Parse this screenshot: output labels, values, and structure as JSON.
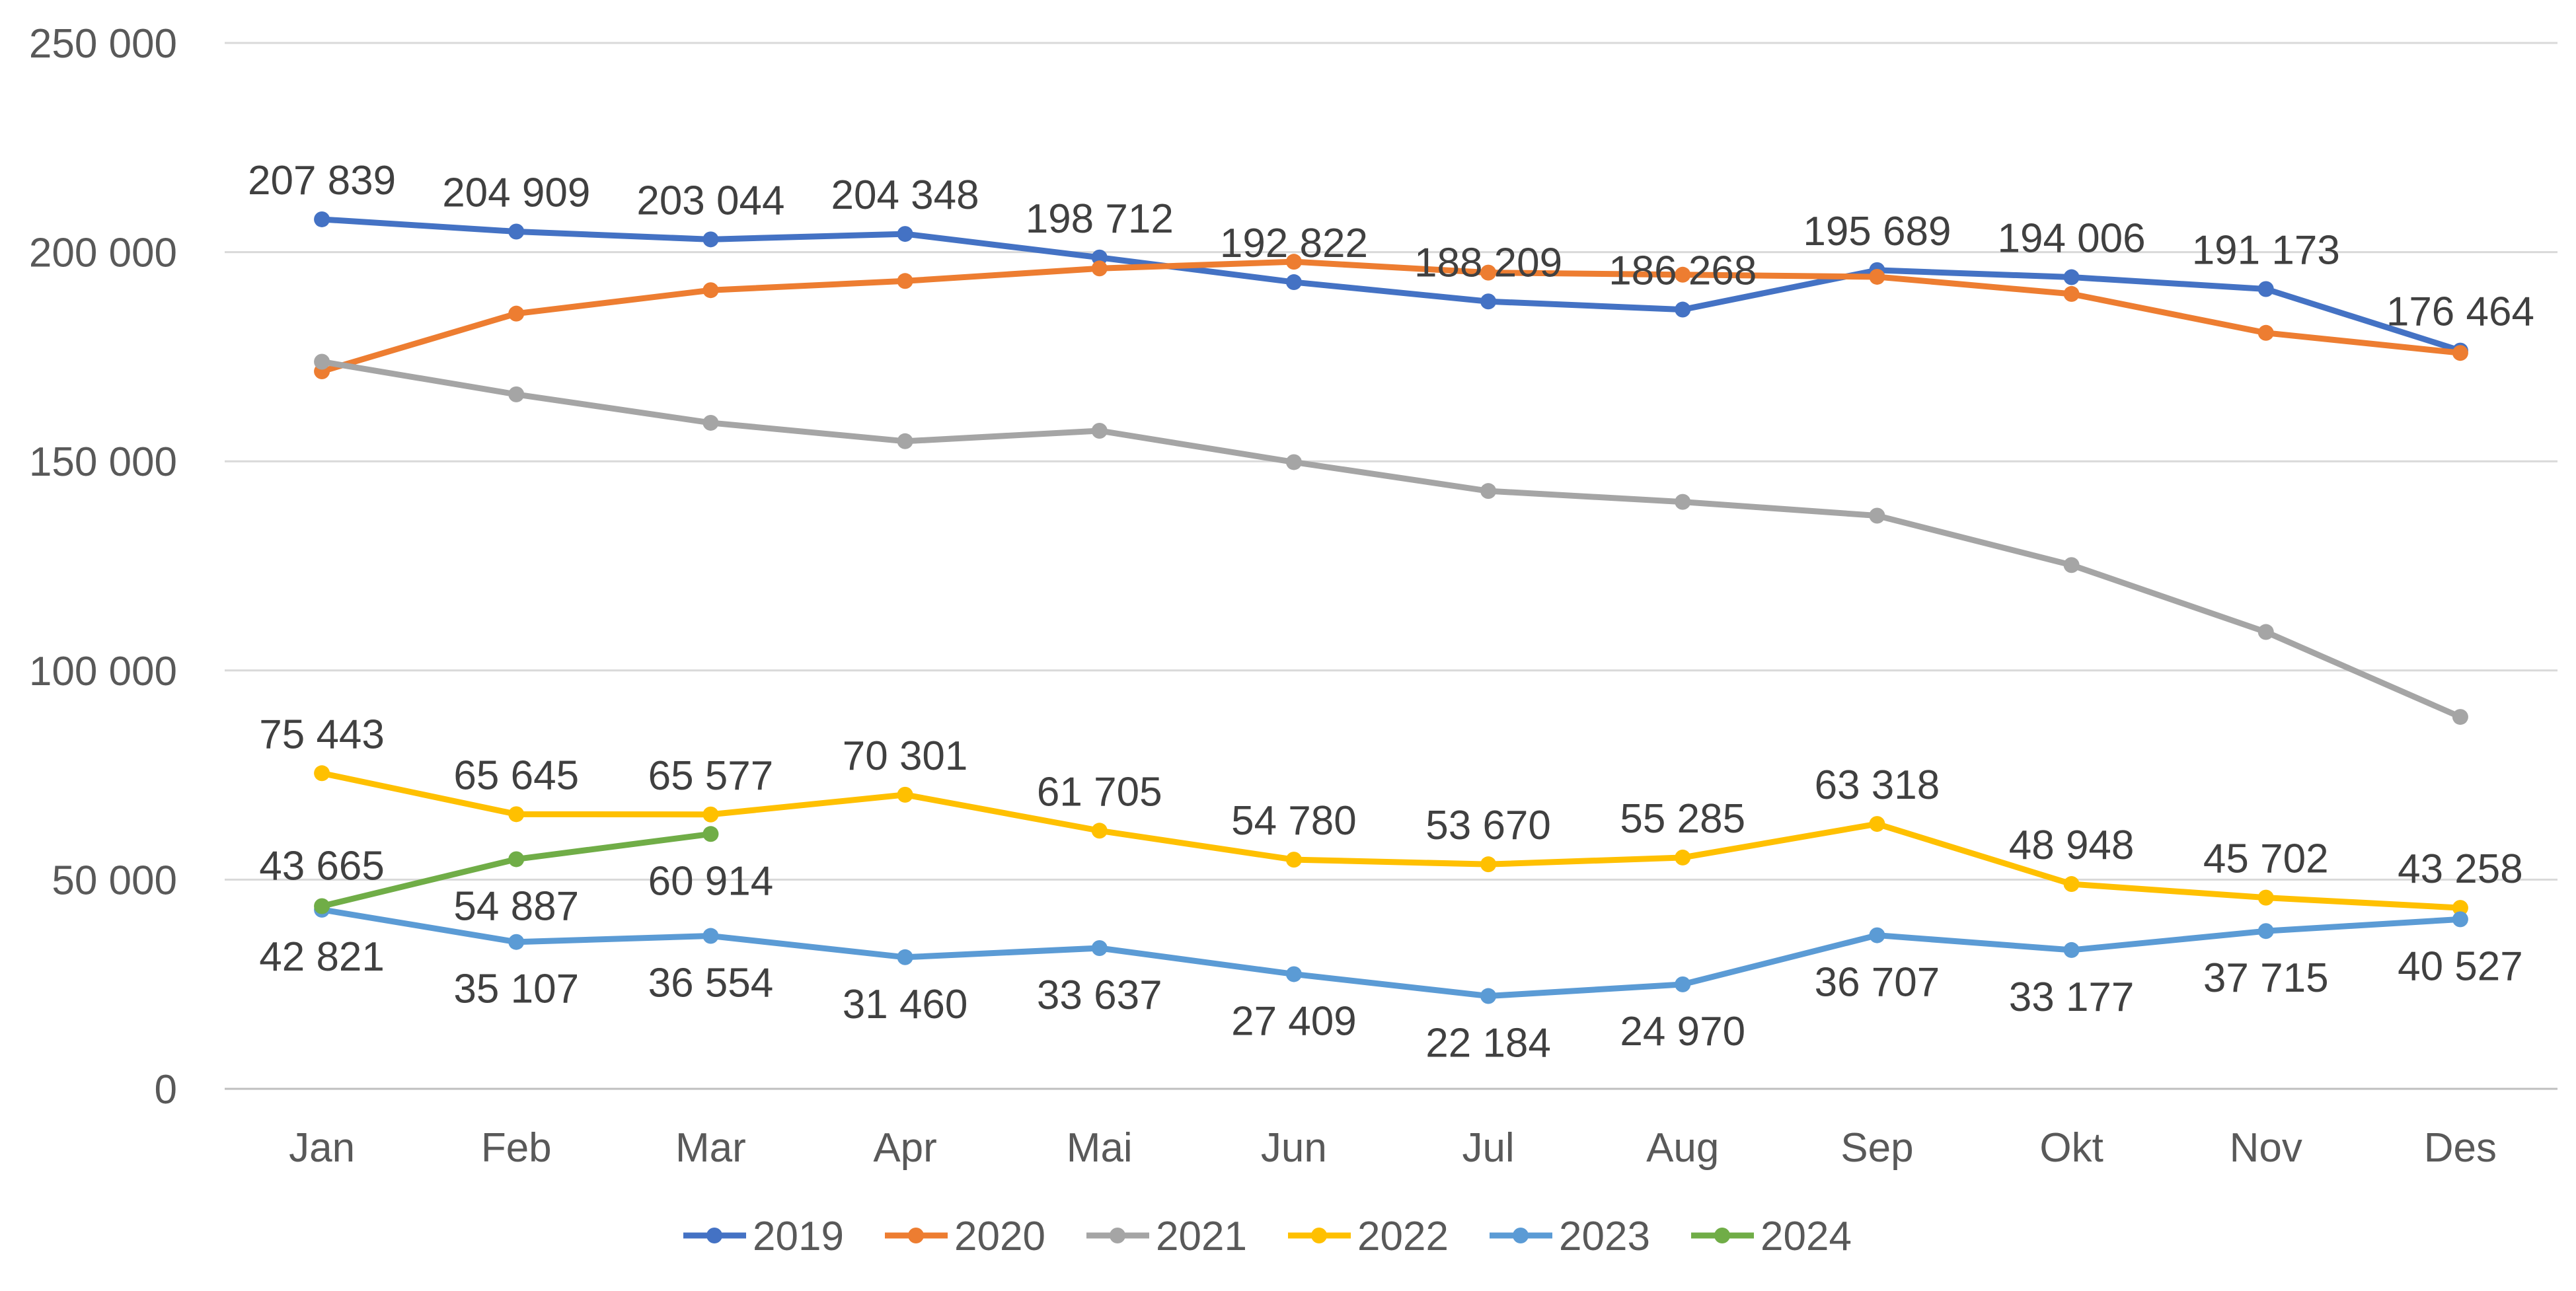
{
  "chart_data": {
    "type": "line",
    "title": "",
    "xlabel": "",
    "ylabel": "",
    "categories": [
      "Jan",
      "Feb",
      "Mar",
      "Apr",
      "Mai",
      "Jun",
      "Jul",
      "Aug",
      "Sep",
      "Okt",
      "Nov",
      "Des"
    ],
    "ylim": [
      0,
      250000
    ],
    "yticks": [
      0,
      50000,
      100000,
      150000,
      200000,
      250000
    ],
    "ytick_labels": [
      "0",
      "50 000",
      "100 000",
      "150 000",
      "200 000",
      "250 000"
    ],
    "grid": true,
    "legend_position": "bottom",
    "series": [
      {
        "name": "2019",
        "color": "#4472C4",
        "values": [
          207839,
          204909,
          203044,
          204348,
          198712,
          192822,
          188209,
          186268,
          195689,
          194006,
          191173,
          176464
        ],
        "show_labels": true,
        "label_position": "above"
      },
      {
        "name": "2020",
        "color": "#ED7D31",
        "values": [
          171500,
          185300,
          190900,
          193100,
          196100,
          197700,
          195100,
          194600,
          194100,
          190000,
          180700,
          175900
        ],
        "show_labels": false
      },
      {
        "name": "2021",
        "color": "#A5A5A5",
        "values": [
          173800,
          166000,
          159200,
          154800,
          157300,
          149800,
          142900,
          140300,
          137000,
          125200,
          109200,
          88900
        ],
        "show_labels": false
      },
      {
        "name": "2022",
        "color": "#FFC000",
        "values": [
          75443,
          65645,
          65577,
          70301,
          61705,
          54780,
          53670,
          55285,
          63318,
          48948,
          45702,
          43258
        ],
        "show_labels": true,
        "label_position": "above"
      },
      {
        "name": "2023",
        "color": "#5B9BD5",
        "values": [
          42821,
          35107,
          36554,
          31460,
          33637,
          27409,
          22184,
          24970,
          36707,
          33177,
          37715,
          40527
        ],
        "show_labels": true,
        "label_position": "below"
      },
      {
        "name": "2024",
        "color": "#70AD47",
        "values": [
          43665,
          54887,
          60914,
          null,
          null,
          null,
          null,
          null,
          null,
          null,
          null,
          null
        ],
        "show_labels": true,
        "label_position": "mixed"
      }
    ]
  }
}
